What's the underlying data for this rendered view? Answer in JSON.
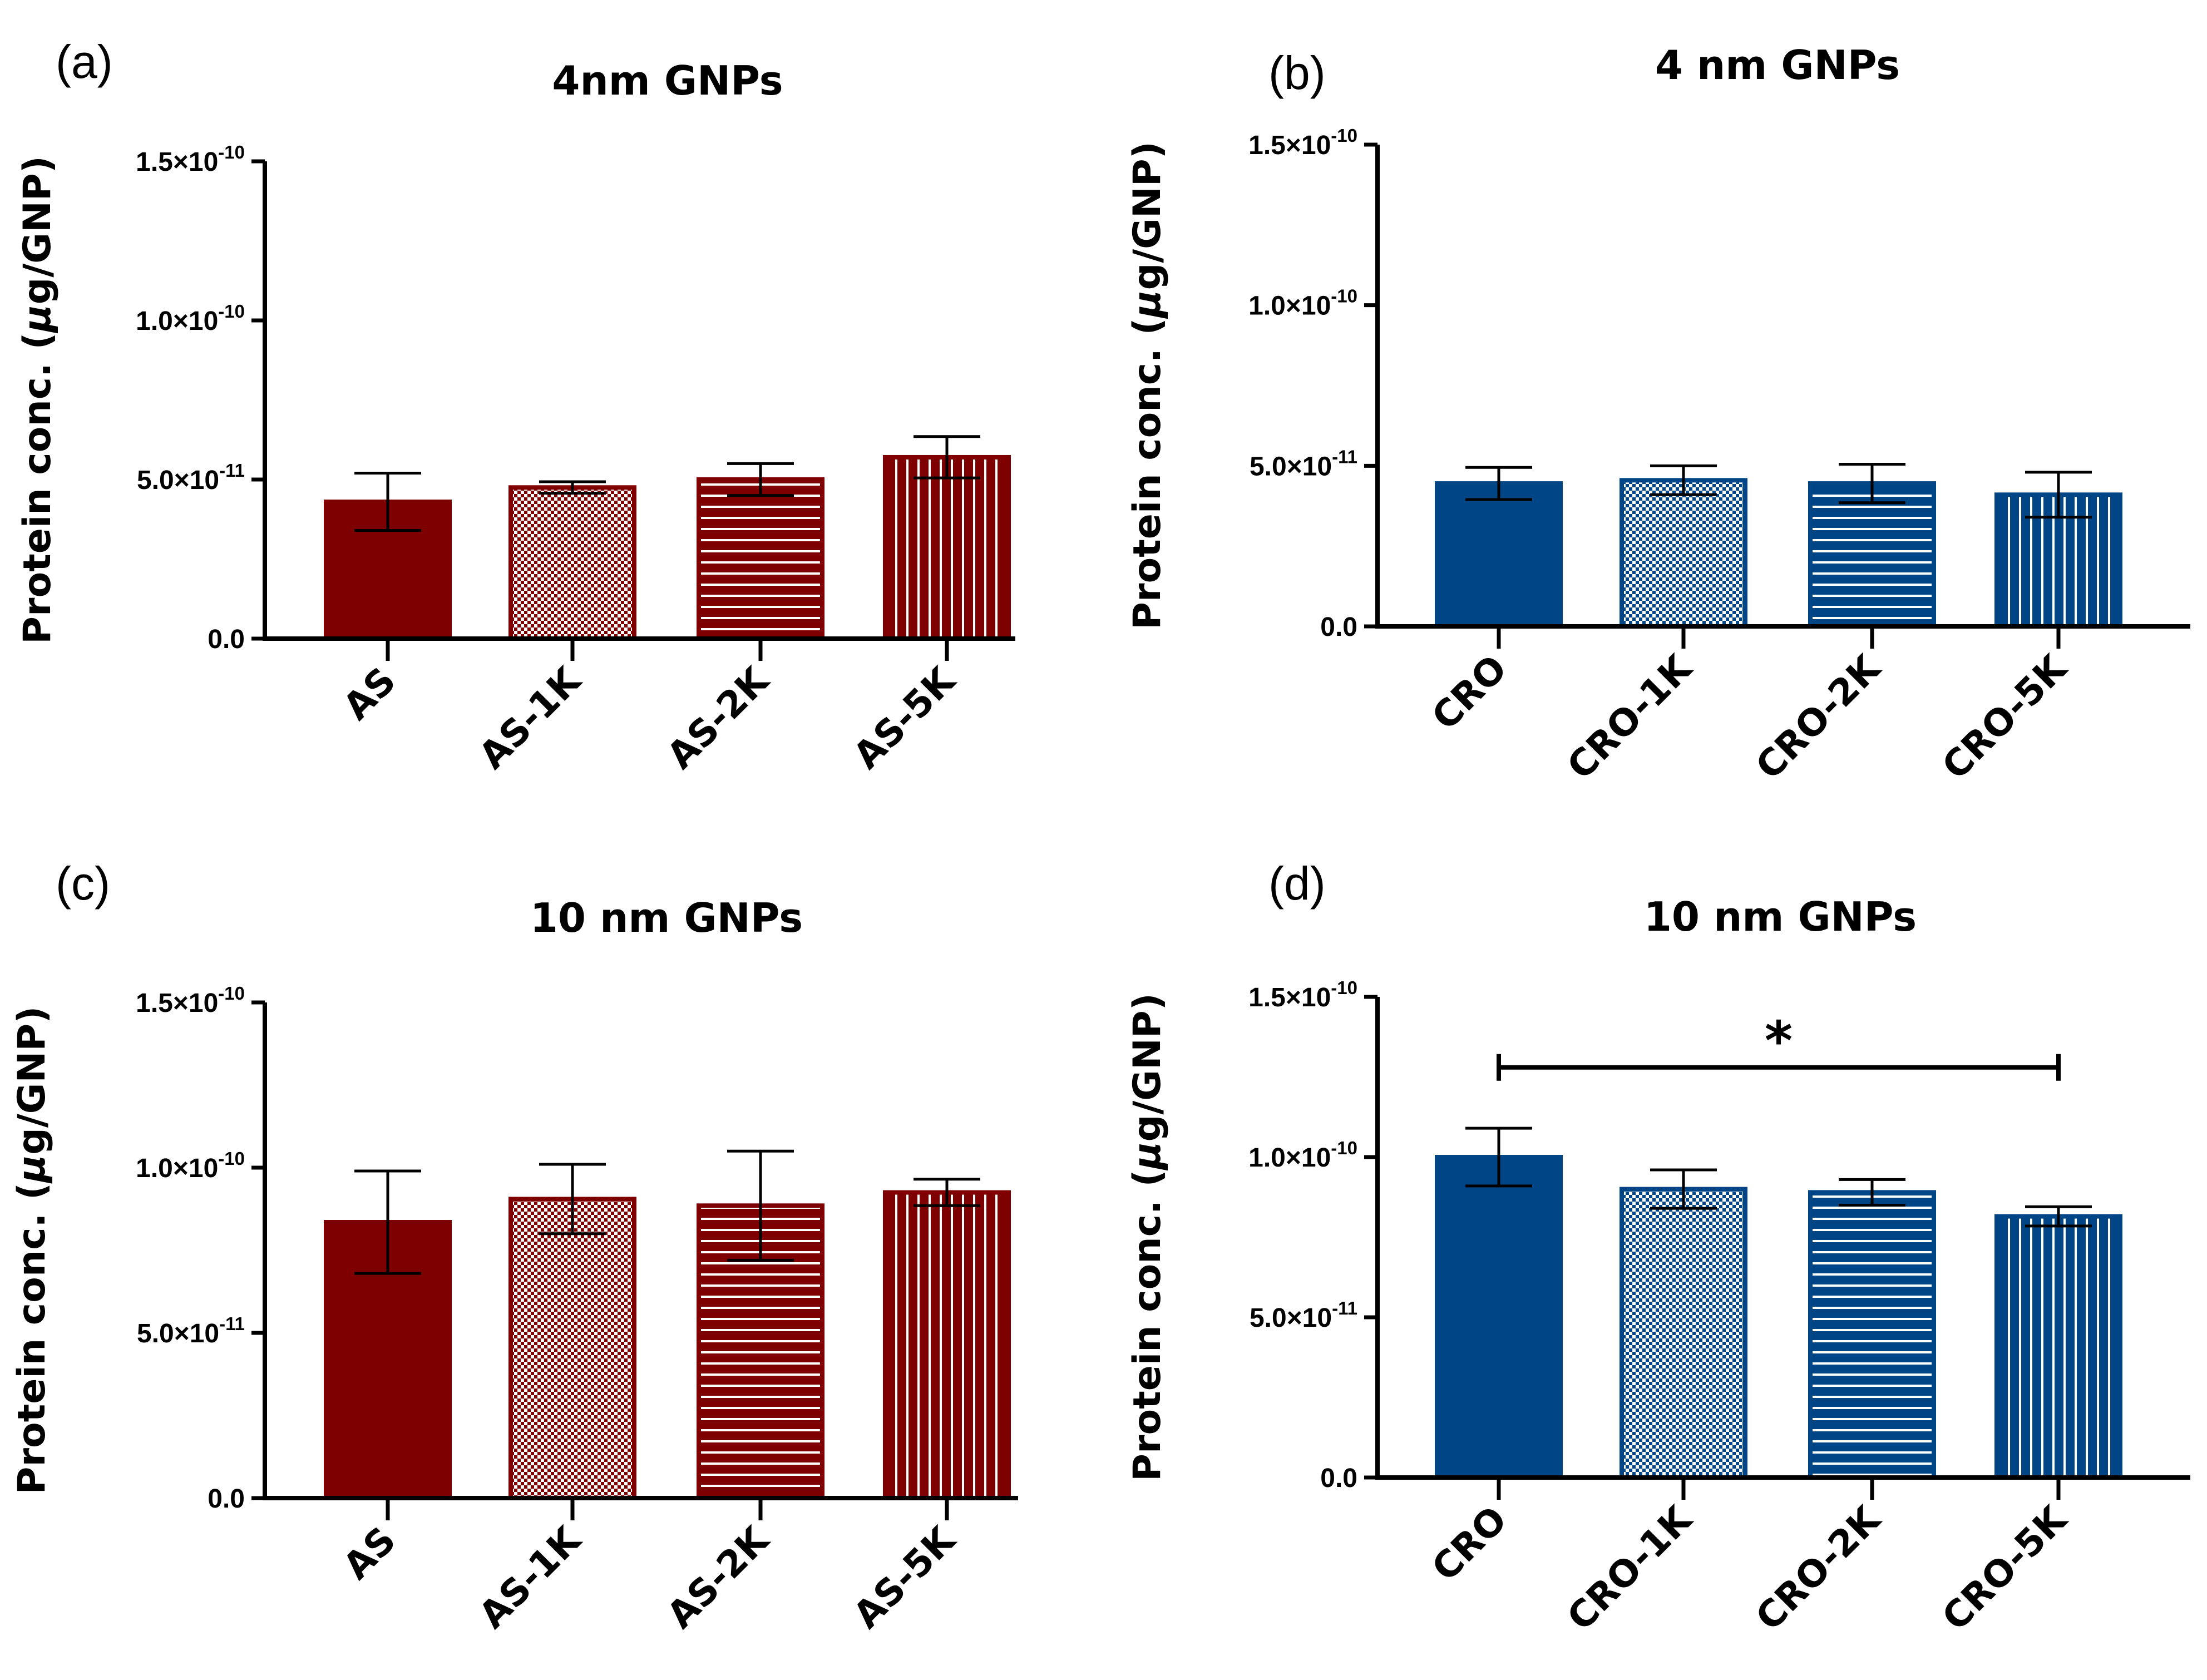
{
  "colors": {
    "as_red": "#7f0000",
    "cro_blue": "#004586",
    "axis": "#000000",
    "white": "#ffffff"
  },
  "chart_data": [
    {
      "panel_label": "(a)",
      "type": "bar",
      "title": "4nm GNPs",
      "ylabel": "Protein conc. (μg/GNP)",
      "xlabel": "",
      "categories": [
        "AS",
        "AS-1K",
        "AS-2K",
        "AS-5K"
      ],
      "patterns": [
        "solid",
        "checker",
        "hlines",
        "vlines"
      ],
      "values": [
        4.3e-11,
        4.75e-11,
        5e-11,
        5.7e-11
      ],
      "errors": [
        9e-12,
        1.8e-12,
        5e-12,
        6.5e-12
      ],
      "ylim": [
        0,
        1.5e-10
      ],
      "yticks": [
        {
          "v": 0,
          "base": "0.0",
          "exp": ""
        },
        {
          "v": 5e-11,
          "base": "5.0×10",
          "exp": "-11"
        },
        {
          "v": 1e-10,
          "base": "1.0×10",
          "exp": "-10"
        },
        {
          "v": 1.5e-10,
          "base": "1.5×10",
          "exp": "-10"
        }
      ],
      "color": "#7f0000",
      "significance": null
    },
    {
      "panel_label": "(b)",
      "type": "bar",
      "title": "4 nm GNPs",
      "ylabel": "Protein conc. (μg/GNP)",
      "xlabel": "",
      "categories": [
        "CRO",
        "CRO-1K",
        "CRO-2K",
        "CRO-5K"
      ],
      "patterns": [
        "solid",
        "checker",
        "hlines",
        "vlines"
      ],
      "values": [
        4.45e-11,
        4.55e-11,
        4.45e-11,
        4.1e-11
      ],
      "errors": [
        5e-12,
        4.5e-12,
        6e-12,
        7e-12
      ],
      "ylim": [
        0,
        1.5e-10
      ],
      "yticks": [
        {
          "v": 0,
          "base": "0.0",
          "exp": ""
        },
        {
          "v": 5e-11,
          "base": "5.0×10",
          "exp": "-11"
        },
        {
          "v": 1e-10,
          "base": "1.0×10",
          "exp": "-10"
        },
        {
          "v": 1.5e-10,
          "base": "1.5×10",
          "exp": "-10"
        }
      ],
      "color": "#004586",
      "significance": null
    },
    {
      "panel_label": "(c)",
      "type": "bar",
      "title": "10 nm GNPs",
      "ylabel": "Protein conc. (μg/GNP)",
      "xlabel": "",
      "categories": [
        "AS",
        "AS-1K",
        "AS-2K",
        "AS-5K"
      ],
      "patterns": [
        "solid",
        "checker",
        "hlines",
        "vlines"
      ],
      "values": [
        8.35e-11,
        9.05e-11,
        8.85e-11,
        9.25e-11
      ],
      "errors": [
        1.55e-11,
        1.05e-11,
        1.65e-11,
        4e-12
      ],
      "ylim": [
        0,
        1.5e-10
      ],
      "yticks": [
        {
          "v": 0,
          "base": "0.0",
          "exp": ""
        },
        {
          "v": 5e-11,
          "base": "5.0×10",
          "exp": "-11"
        },
        {
          "v": 1e-10,
          "base": "1.0×10",
          "exp": "-10"
        },
        {
          "v": 1.5e-10,
          "base": "1.5×10",
          "exp": "-10"
        }
      ],
      "color": "#7f0000",
      "significance": null
    },
    {
      "panel_label": "(d)",
      "type": "bar",
      "title": "10 nm GNPs",
      "ylabel": "Protein conc. (μg/GNP)",
      "xlabel": "",
      "categories": [
        "CRO",
        "CRO-1K",
        "CRO-2K",
        "CRO-5K"
      ],
      "patterns": [
        "solid",
        "checker",
        "hlines",
        "vlines"
      ],
      "values": [
        1e-10,
        9e-11,
        8.9e-11,
        8.15e-11
      ],
      "errors": [
        9e-12,
        6e-12,
        4e-12,
        3e-12
      ],
      "ylim": [
        0,
        1.5e-10
      ],
      "yticks": [
        {
          "v": 0,
          "base": "0.0",
          "exp": ""
        },
        {
          "v": 5e-11,
          "base": "5.0×10",
          "exp": "-11"
        },
        {
          "v": 1e-10,
          "base": "1.0×10",
          "exp": "-10"
        },
        {
          "v": 1.5e-10,
          "base": "1.5×10",
          "exp": "-10"
        }
      ],
      "color": "#004586",
      "significance": {
        "from": "CRO",
        "to": "CRO-5K",
        "value": 1.28e-10,
        "label": "*"
      }
    }
  ]
}
